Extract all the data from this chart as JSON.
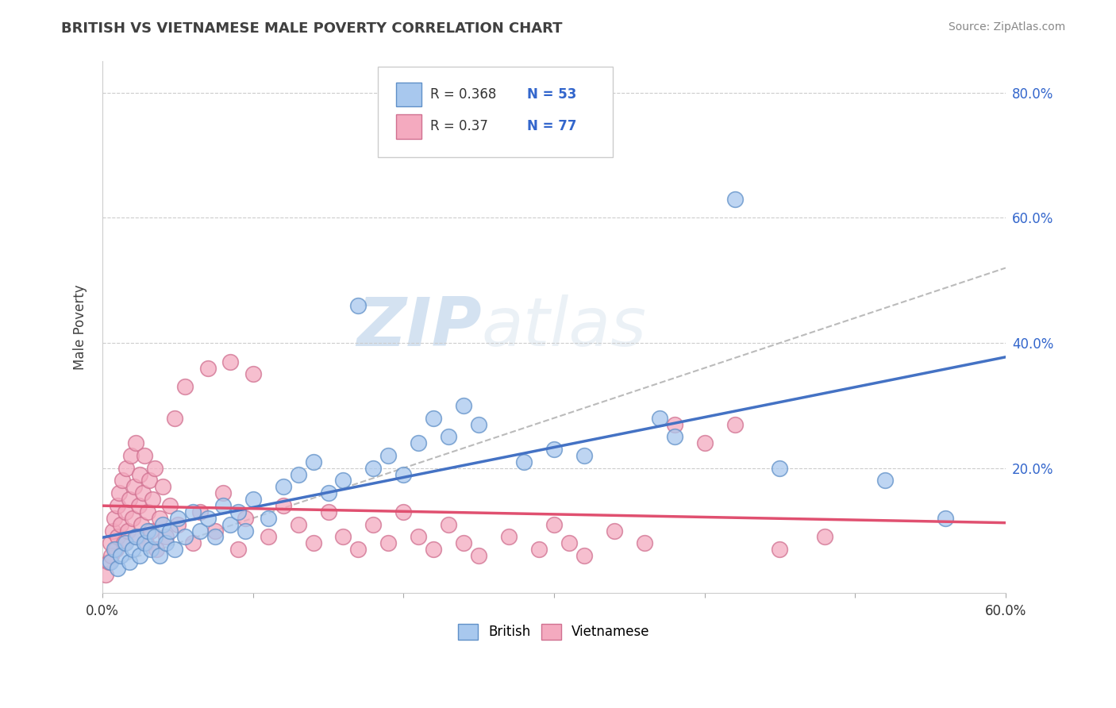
{
  "title": "BRITISH VS VIETNAMESE MALE POVERTY CORRELATION CHART",
  "source": "Source: ZipAtlas.com",
  "ylabel": "Male Poverty",
  "xlim": [
    0.0,
    0.6
  ],
  "ylim": [
    0.0,
    0.85
  ],
  "xtick_labels": [
    "0.0%",
    "",
    "",
    "",
    "",
    "",
    "60.0%"
  ],
  "xtick_vals": [
    0.0,
    0.1,
    0.2,
    0.3,
    0.4,
    0.5,
    0.6
  ],
  "ytick_labels": [
    "20.0%",
    "40.0%",
    "60.0%",
    "80.0%"
  ],
  "ytick_vals": [
    0.2,
    0.4,
    0.6,
    0.8
  ],
  "british_color": "#A8C8EE",
  "vietnamese_color": "#F4AABF",
  "british_R": 0.368,
  "british_N": 53,
  "vietnamese_R": 0.37,
  "vietnamese_N": 77,
  "british_line_color": "#4472C4",
  "vietnamese_line_color": "#E05070",
  "dash_line_color": "#BBBBBB",
  "watermark_color": "#D8E8F4",
  "title_color": "#404040",
  "legend_R_color": "#3366CC",
  "axis_color": "#AAAAAA",
  "british_scatter": [
    [
      0.005,
      0.05
    ],
    [
      0.008,
      0.07
    ],
    [
      0.01,
      0.04
    ],
    [
      0.012,
      0.06
    ],
    [
      0.015,
      0.08
    ],
    [
      0.018,
      0.05
    ],
    [
      0.02,
      0.07
    ],
    [
      0.022,
      0.09
    ],
    [
      0.025,
      0.06
    ],
    [
      0.028,
      0.08
    ],
    [
      0.03,
      0.1
    ],
    [
      0.032,
      0.07
    ],
    [
      0.035,
      0.09
    ],
    [
      0.038,
      0.06
    ],
    [
      0.04,
      0.11
    ],
    [
      0.042,
      0.08
    ],
    [
      0.045,
      0.1
    ],
    [
      0.048,
      0.07
    ],
    [
      0.05,
      0.12
    ],
    [
      0.055,
      0.09
    ],
    [
      0.06,
      0.13
    ],
    [
      0.065,
      0.1
    ],
    [
      0.07,
      0.12
    ],
    [
      0.075,
      0.09
    ],
    [
      0.08,
      0.14
    ],
    [
      0.085,
      0.11
    ],
    [
      0.09,
      0.13
    ],
    [
      0.095,
      0.1
    ],
    [
      0.1,
      0.15
    ],
    [
      0.11,
      0.12
    ],
    [
      0.12,
      0.17
    ],
    [
      0.13,
      0.19
    ],
    [
      0.14,
      0.21
    ],
    [
      0.15,
      0.16
    ],
    [
      0.16,
      0.18
    ],
    [
      0.17,
      0.46
    ],
    [
      0.18,
      0.2
    ],
    [
      0.19,
      0.22
    ],
    [
      0.2,
      0.19
    ],
    [
      0.21,
      0.24
    ],
    [
      0.22,
      0.28
    ],
    [
      0.23,
      0.25
    ],
    [
      0.24,
      0.3
    ],
    [
      0.25,
      0.27
    ],
    [
      0.28,
      0.21
    ],
    [
      0.3,
      0.23
    ],
    [
      0.32,
      0.22
    ],
    [
      0.37,
      0.28
    ],
    [
      0.38,
      0.25
    ],
    [
      0.42,
      0.63
    ],
    [
      0.45,
      0.2
    ],
    [
      0.52,
      0.18
    ],
    [
      0.56,
      0.12
    ]
  ],
  "vietnamese_scatter": [
    [
      0.002,
      0.03
    ],
    [
      0.004,
      0.05
    ],
    [
      0.005,
      0.08
    ],
    [
      0.006,
      0.06
    ],
    [
      0.007,
      0.1
    ],
    [
      0.008,
      0.12
    ],
    [
      0.009,
      0.07
    ],
    [
      0.01,
      0.14
    ],
    [
      0.01,
      0.09
    ],
    [
      0.011,
      0.16
    ],
    [
      0.012,
      0.11
    ],
    [
      0.013,
      0.18
    ],
    [
      0.014,
      0.08
    ],
    [
      0.015,
      0.13
    ],
    [
      0.016,
      0.2
    ],
    [
      0.017,
      0.1
    ],
    [
      0.018,
      0.15
    ],
    [
      0.019,
      0.22
    ],
    [
      0.02,
      0.12
    ],
    [
      0.021,
      0.17
    ],
    [
      0.022,
      0.24
    ],
    [
      0.023,
      0.09
    ],
    [
      0.024,
      0.14
    ],
    [
      0.025,
      0.19
    ],
    [
      0.026,
      0.11
    ],
    [
      0.027,
      0.16
    ],
    [
      0.028,
      0.22
    ],
    [
      0.029,
      0.08
    ],
    [
      0.03,
      0.13
    ],
    [
      0.031,
      0.18
    ],
    [
      0.032,
      0.1
    ],
    [
      0.033,
      0.15
    ],
    [
      0.035,
      0.2
    ],
    [
      0.036,
      0.07
    ],
    [
      0.038,
      0.12
    ],
    [
      0.04,
      0.17
    ],
    [
      0.042,
      0.09
    ],
    [
      0.045,
      0.14
    ],
    [
      0.048,
      0.28
    ],
    [
      0.05,
      0.11
    ],
    [
      0.055,
      0.33
    ],
    [
      0.06,
      0.08
    ],
    [
      0.065,
      0.13
    ],
    [
      0.07,
      0.36
    ],
    [
      0.075,
      0.1
    ],
    [
      0.08,
      0.16
    ],
    [
      0.085,
      0.37
    ],
    [
      0.09,
      0.07
    ],
    [
      0.095,
      0.12
    ],
    [
      0.1,
      0.35
    ],
    [
      0.11,
      0.09
    ],
    [
      0.12,
      0.14
    ],
    [
      0.13,
      0.11
    ],
    [
      0.14,
      0.08
    ],
    [
      0.15,
      0.13
    ],
    [
      0.16,
      0.09
    ],
    [
      0.17,
      0.07
    ],
    [
      0.18,
      0.11
    ],
    [
      0.19,
      0.08
    ],
    [
      0.2,
      0.13
    ],
    [
      0.21,
      0.09
    ],
    [
      0.22,
      0.07
    ],
    [
      0.23,
      0.11
    ],
    [
      0.24,
      0.08
    ],
    [
      0.25,
      0.06
    ],
    [
      0.27,
      0.09
    ],
    [
      0.29,
      0.07
    ],
    [
      0.3,
      0.11
    ],
    [
      0.31,
      0.08
    ],
    [
      0.32,
      0.06
    ],
    [
      0.34,
      0.1
    ],
    [
      0.36,
      0.08
    ],
    [
      0.38,
      0.27
    ],
    [
      0.4,
      0.24
    ],
    [
      0.42,
      0.27
    ],
    [
      0.45,
      0.07
    ],
    [
      0.48,
      0.09
    ]
  ]
}
